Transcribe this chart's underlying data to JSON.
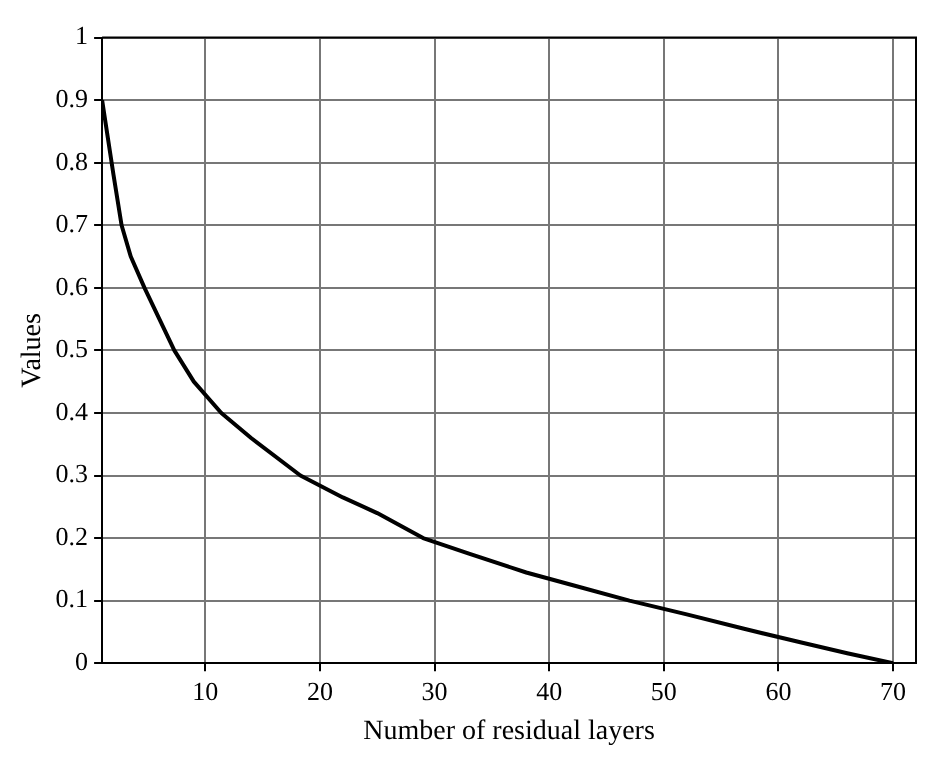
{
  "chart_data": {
    "type": "line",
    "xlabel": "Number of residual layers",
    "ylabel": "Values",
    "series": [
      {
        "color": "#000000",
        "x": [
          1,
          1.5,
          2,
          2.7,
          3.5,
          4.7,
          6,
          7.3,
          9,
          11.4,
          14,
          18.3,
          22,
          25,
          29,
          33,
          38,
          42,
          47,
          52,
          57,
          62,
          66,
          70
        ],
        "values": [
          0.9,
          0.84,
          0.78,
          0.7,
          0.65,
          0.6,
          0.55,
          0.5,
          0.45,
          0.4,
          0.36,
          0.3,
          0.265,
          0.24,
          0.2,
          0.175,
          0.145,
          0.125,
          0.1,
          0.078,
          0.055,
          0.033,
          0.016,
          0
        ]
      }
    ],
    "xlim": [
      1,
      72
    ],
    "xticks": [
      10,
      20,
      30,
      40,
      50,
      60,
      70
    ],
    "ylim": [
      0,
      1
    ],
    "yticks": [
      0,
      0.1,
      0.2,
      0.3,
      0.4,
      0.5,
      0.6,
      0.7,
      0.8,
      0.9,
      1
    ],
    "grid": true,
    "line_style": "solid",
    "marker": "none"
  }
}
